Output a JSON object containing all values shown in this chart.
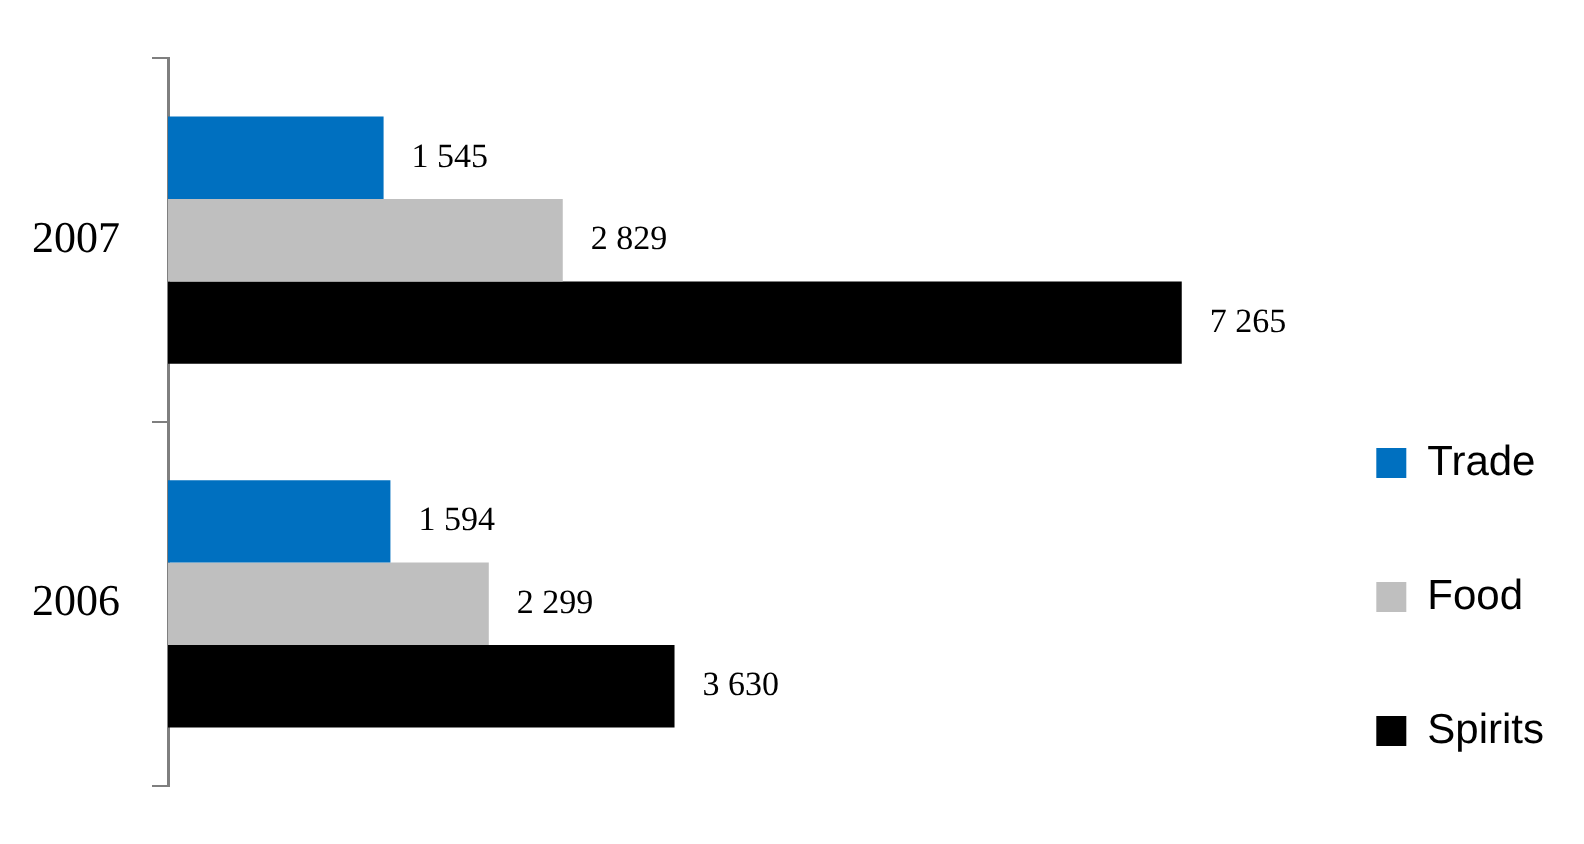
{
  "chart_data": {
    "type": "bar",
    "orientation": "horizontal",
    "categories": [
      "2007",
      "2006"
    ],
    "series": [
      {
        "name": "Trade",
        "color": "#0070c0",
        "values": [
          1545,
          1594
        ],
        "value_labels": [
          "1 545",
          "1 594"
        ]
      },
      {
        "name": "Food",
        "color": "#bfbfbf",
        "values": [
          2829,
          2299
        ],
        "value_labels": [
          "2 829",
          "2 299"
        ]
      },
      {
        "name": "Spirits",
        "color": "#000000",
        "values": [
          7265,
          3630
        ],
        "value_labels": [
          "7 265",
          "3 630"
        ]
      }
    ],
    "legend": "right",
    "tick_labels": "y"
  }
}
